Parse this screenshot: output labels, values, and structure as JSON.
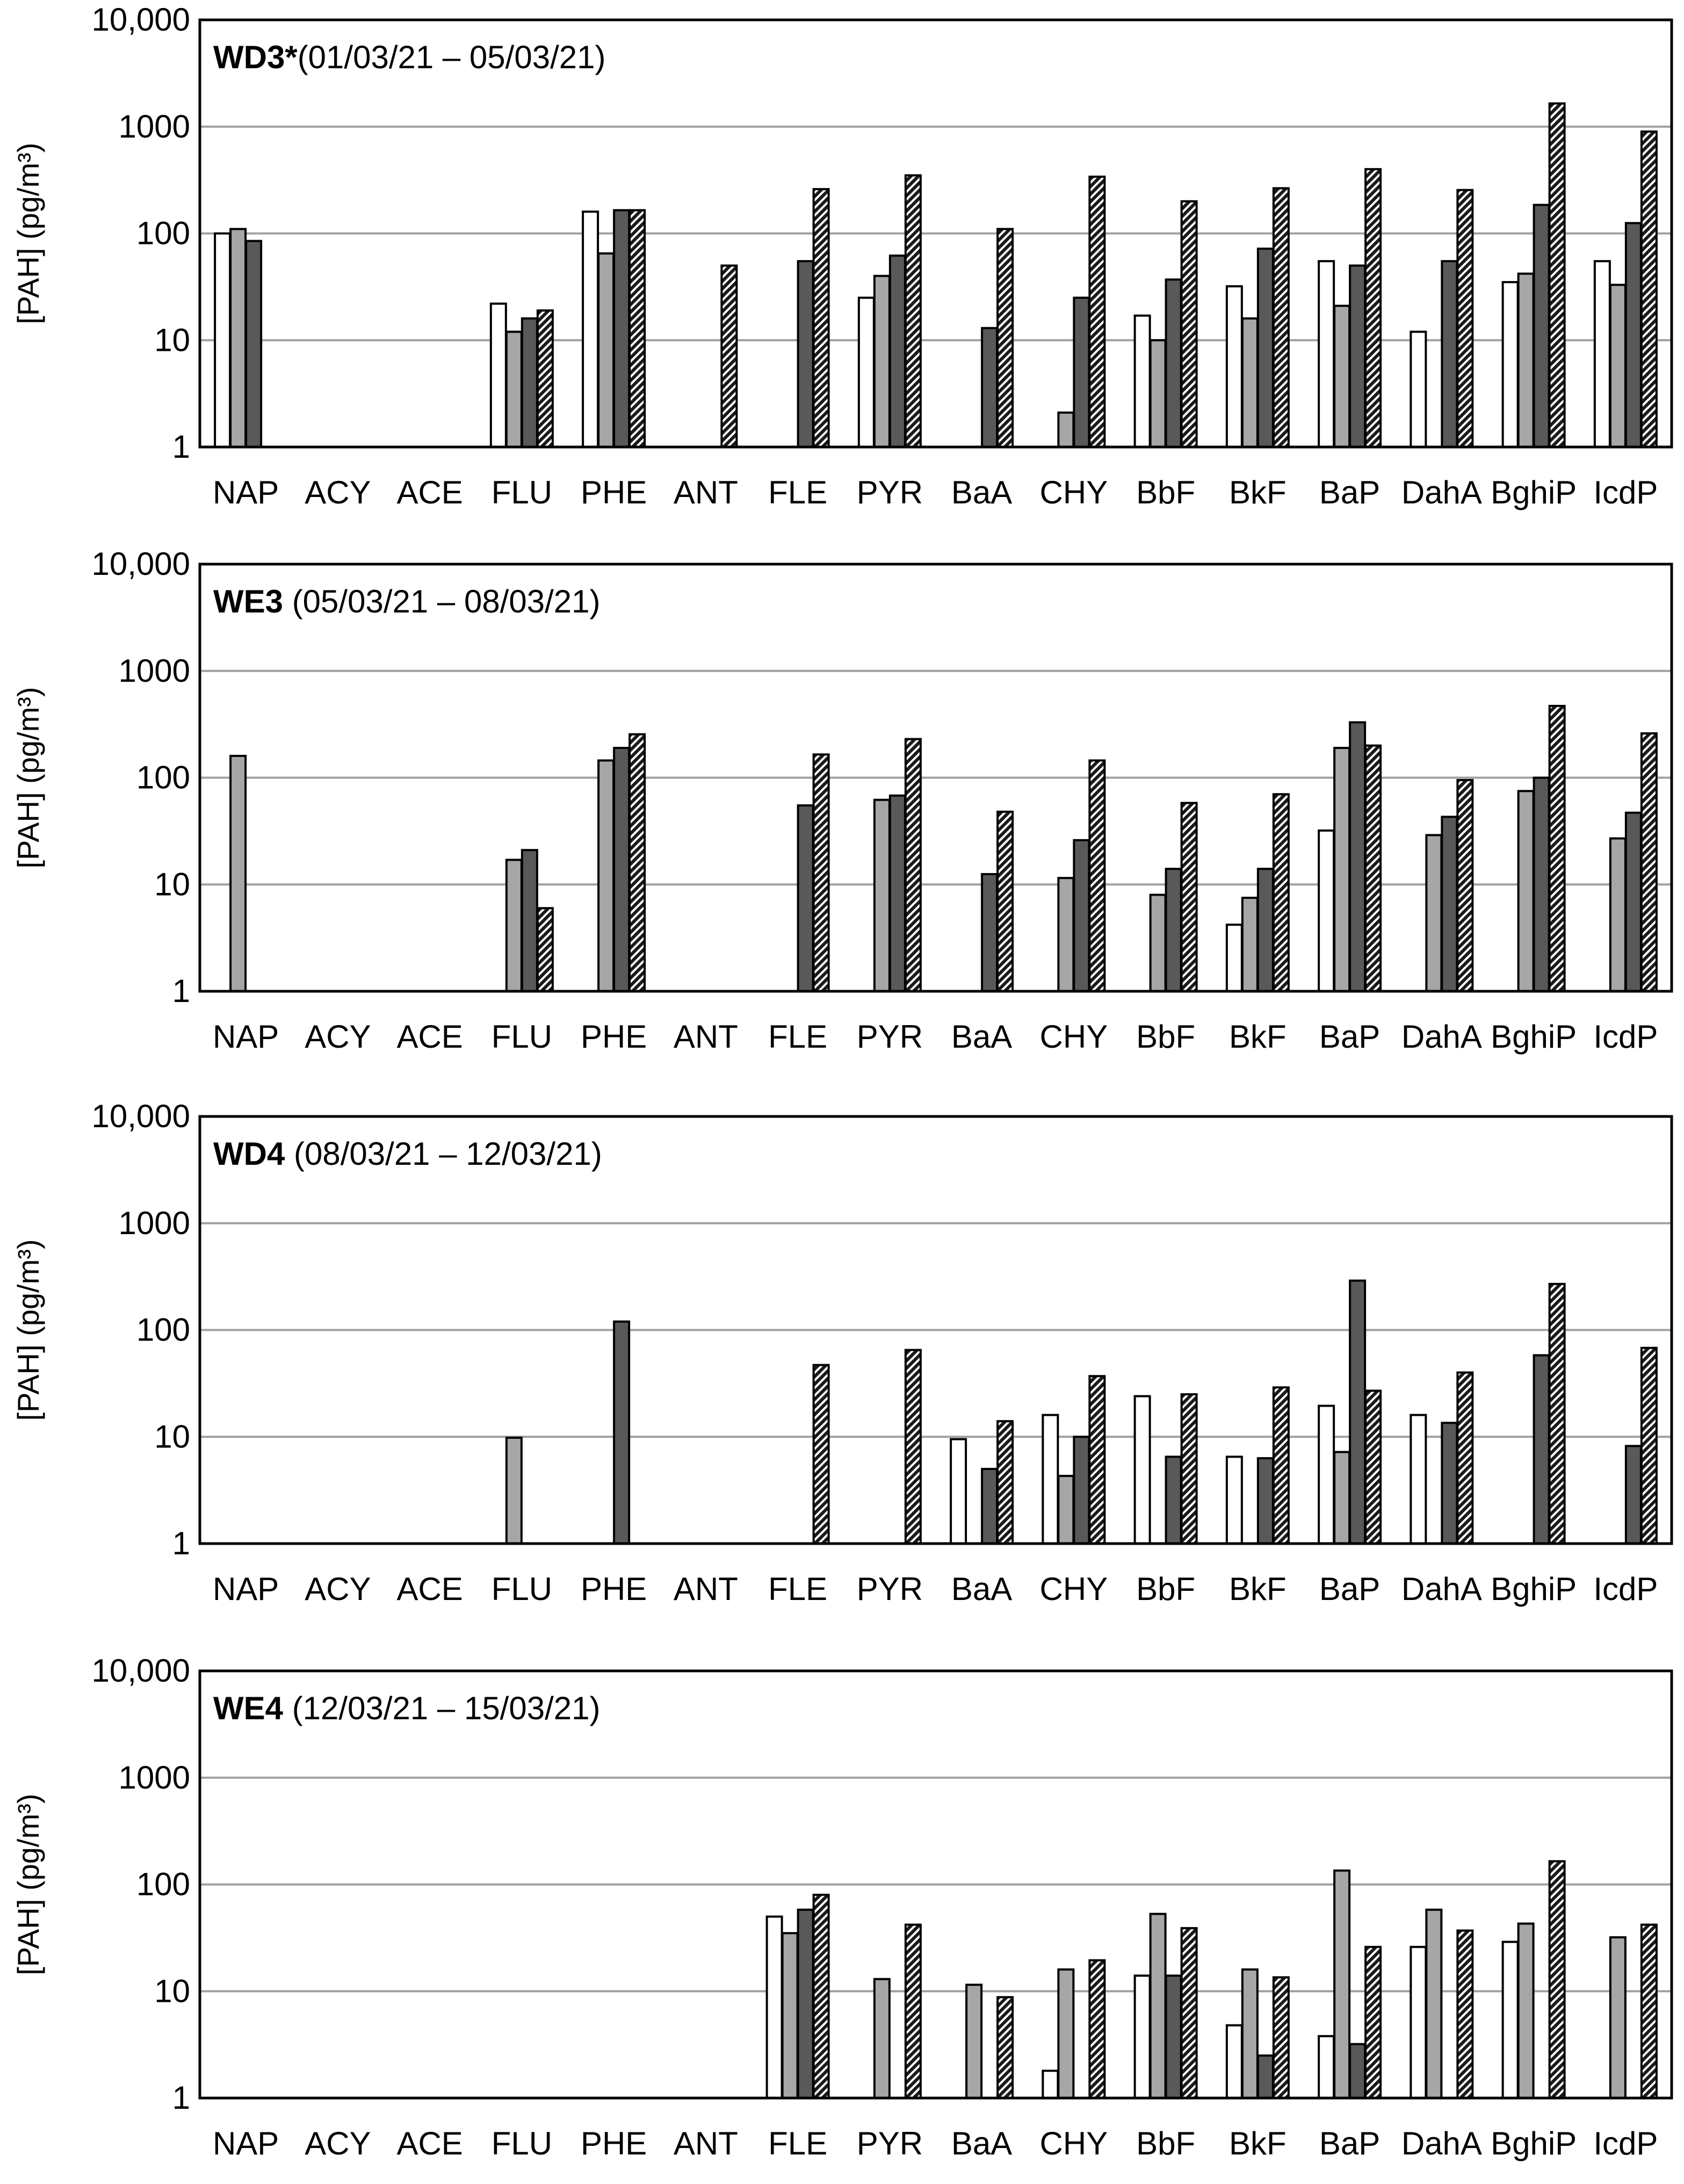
{
  "chart_data": [
    {
      "type": "bar",
      "scale": "log",
      "title_bold": "WD3*",
      "title_rest": "(01/03/21 – 05/03/21)",
      "ylabel": "[PAH] (pg/m³)",
      "ylim": [
        1,
        10000
      ],
      "yticks": [
        "1",
        "10",
        "100",
        "1000",
        "10,000"
      ],
      "gridlines": true,
      "categories": [
        "NAP",
        "ACY",
        "ACE",
        "FLU",
        "PHE",
        "ANT",
        "FLE",
        "PYR",
        "BaA",
        "CHY",
        "BbF",
        "BkF",
        "BaP",
        "DahA",
        "BghiP",
        "IcdP"
      ],
      "series": [
        {
          "name": "white",
          "color": "#ffffff",
          "pattern": "solid",
          "values": [
            100,
            null,
            null,
            22,
            160,
            null,
            null,
            25,
            null,
            null,
            17,
            32,
            55,
            12,
            35,
            55
          ]
        },
        {
          "name": "light-grey",
          "color": "#a6a6a6",
          "pattern": "solid",
          "values": [
            110,
            null,
            null,
            12,
            65,
            null,
            null,
            40,
            null,
            2.1,
            10,
            16,
            21,
            null,
            42,
            33
          ]
        },
        {
          "name": "dark-grey",
          "color": "#595959",
          "pattern": "solid",
          "values": [
            85,
            null,
            null,
            16,
            165,
            null,
            55,
            62,
            13,
            25,
            37,
            72,
            50,
            55,
            185,
            125
          ]
        },
        {
          "name": "hatched",
          "color": "#333333",
          "pattern": "hatch",
          "values": [
            null,
            null,
            null,
            19,
            165,
            50,
            260,
            350,
            110,
            340,
            200,
            265,
            400,
            255,
            1650,
            900
          ]
        }
      ]
    },
    {
      "type": "bar",
      "scale": "log",
      "title_bold": "WE3",
      "title_rest": "(05/03/21 – 08/03/21)",
      "ylabel": "[PAH] (pg/m³)",
      "ylim": [
        1,
        10000
      ],
      "yticks": [
        "1",
        "10",
        "100",
        "1000",
        "10,000"
      ],
      "gridlines": true,
      "categories": [
        "NAP",
        "ACY",
        "ACE",
        "FLU",
        "PHE",
        "ANT",
        "FLE",
        "PYR",
        "BaA",
        "CHY",
        "BbF",
        "BkF",
        "BaP",
        "DahA",
        "BghiP",
        "IcdP"
      ],
      "series": [
        {
          "name": "white",
          "color": "#ffffff",
          "pattern": "solid",
          "values": [
            null,
            null,
            null,
            null,
            null,
            null,
            null,
            null,
            null,
            null,
            null,
            4.2,
            32,
            null,
            null,
            null
          ]
        },
        {
          "name": "light-grey",
          "color": "#a6a6a6",
          "pattern": "solid",
          "values": [
            160,
            null,
            null,
            17,
            145,
            null,
            null,
            62,
            null,
            11.5,
            8,
            7.5,
            190,
            29,
            75,
            27
          ]
        },
        {
          "name": "dark-grey",
          "color": "#595959",
          "pattern": "solid",
          "values": [
            null,
            null,
            null,
            21,
            190,
            null,
            55,
            68,
            12.5,
            26,
            14,
            14,
            330,
            43,
            100,
            47
          ]
        },
        {
          "name": "hatched",
          "color": "#333333",
          "pattern": "hatch",
          "values": [
            null,
            null,
            null,
            6,
            255,
            null,
            165,
            230,
            48,
            145,
            58,
            70,
            200,
            95,
            470,
            260
          ]
        }
      ]
    },
    {
      "type": "bar",
      "scale": "log",
      "title_bold": "WD4",
      "title_rest": "(08/03/21 – 12/03/21)",
      "ylabel": "[PAH] (pg/m³)",
      "ylim": [
        1,
        10000
      ],
      "yticks": [
        "1",
        "10",
        "100",
        "1000",
        "10,000"
      ],
      "gridlines": true,
      "categories": [
        "NAP",
        "ACY",
        "ACE",
        "FLU",
        "PHE",
        "ANT",
        "FLE",
        "PYR",
        "BaA",
        "CHY",
        "BbF",
        "BkF",
        "BaP",
        "DahA",
        "BghiP",
        "IcdP"
      ],
      "series": [
        {
          "name": "white",
          "color": "#ffffff",
          "pattern": "solid",
          "values": [
            null,
            null,
            null,
            null,
            null,
            null,
            null,
            null,
            9.5,
            16,
            24,
            6.5,
            19.5,
            16,
            null,
            null
          ]
        },
        {
          "name": "light-grey",
          "color": "#a6a6a6",
          "pattern": "solid",
          "values": [
            null,
            null,
            null,
            9.8,
            null,
            null,
            null,
            null,
            null,
            4.3,
            null,
            null,
            7.2,
            null,
            null,
            null
          ]
        },
        {
          "name": "dark-grey",
          "color": "#595959",
          "pattern": "solid",
          "values": [
            null,
            null,
            null,
            null,
            120,
            null,
            null,
            null,
            5,
            10,
            6.5,
            6.3,
            290,
            13.5,
            58,
            8.2
          ]
        },
        {
          "name": "hatched",
          "color": "#333333",
          "pattern": "hatch",
          "values": [
            null,
            null,
            null,
            null,
            null,
            null,
            47,
            65,
            14,
            37,
            25,
            29,
            27,
            40,
            270,
            68
          ]
        }
      ]
    },
    {
      "type": "bar",
      "scale": "log",
      "title_bold": "WE4",
      "title_rest": "(12/03/21 – 15/03/21)",
      "ylabel": "[PAH] (pg/m³)",
      "ylim": [
        1,
        10000
      ],
      "yticks": [
        "1",
        "10",
        "100",
        "1000",
        "10,000"
      ],
      "gridlines": true,
      "categories": [
        "NAP",
        "ACY",
        "ACE",
        "FLU",
        "PHE",
        "ANT",
        "FLE",
        "PYR",
        "BaA",
        "CHY",
        "BbF",
        "BkF",
        "BaP",
        "DahA",
        "BghiP",
        "IcdP"
      ],
      "series": [
        {
          "name": "white",
          "color": "#ffffff",
          "pattern": "solid",
          "values": [
            null,
            null,
            null,
            null,
            null,
            null,
            50,
            null,
            null,
            1.8,
            14,
            4.8,
            3.8,
            26,
            29,
            null
          ]
        },
        {
          "name": "light-grey",
          "color": "#a6a6a6",
          "pattern": "solid",
          "values": [
            null,
            null,
            null,
            null,
            null,
            null,
            35,
            13,
            11.5,
            16,
            53,
            16,
            135,
            58,
            43,
            32
          ]
        },
        {
          "name": "dark-grey",
          "color": "#595959",
          "pattern": "solid",
          "values": [
            null,
            null,
            null,
            null,
            null,
            null,
            58,
            null,
            null,
            null,
            14,
            2.5,
            3.2,
            null,
            null,
            null
          ]
        },
        {
          "name": "hatched",
          "color": "#333333",
          "pattern": "hatch",
          "values": [
            null,
            null,
            null,
            null,
            null,
            null,
            80,
            42,
            8.8,
            19.5,
            39,
            13.5,
            26,
            37,
            165,
            42
          ]
        }
      ]
    }
  ]
}
